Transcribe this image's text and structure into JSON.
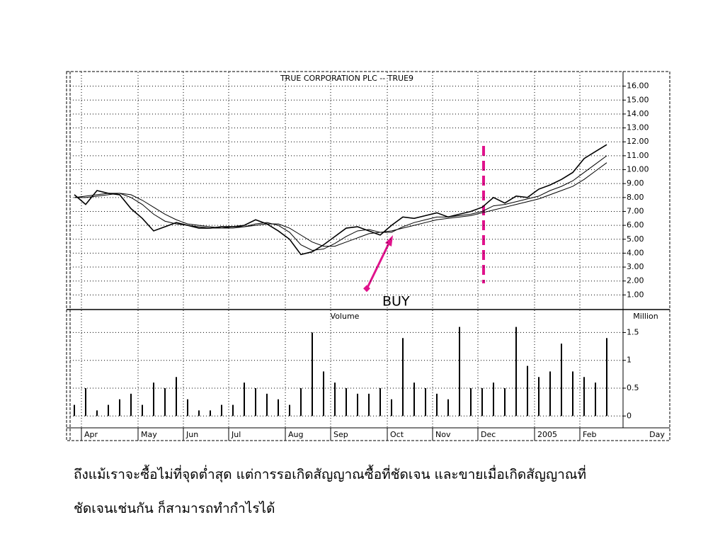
{
  "chart_data": [
    {
      "type": "line",
      "title": "TRUE CORPORATION PLC -- TRUE9",
      "series": [
        {
          "color": "#000000",
          "values": [
            8.2,
            7.5,
            8.5,
            8.3,
            8.2,
            7.2,
            6.5,
            5.6,
            5.9,
            6.2,
            6.0,
            5.8,
            5.8,
            5.9,
            5.9,
            6.0,
            6.4,
            6.1,
            5.6,
            5.0,
            3.9,
            4.1,
            4.6,
            5.2,
            5.8,
            5.9,
            5.6,
            5.3,
            6.0,
            6.6,
            6.5,
            6.7,
            6.9,
            6.6,
            6.8,
            7.0,
            7.3,
            8.0,
            7.6,
            8.1,
            8.0,
            8.6,
            8.9,
            9.3,
            9.8,
            10.8,
            11.3,
            11.8
          ]
        },
        {
          "color": "#000000",
          "values": [
            8.0,
            8.0,
            8.1,
            8.2,
            8.3,
            8.0,
            7.5,
            6.8,
            6.3,
            6.1,
            6.0,
            5.9,
            5.8,
            5.8,
            5.9,
            5.9,
            6.1,
            6.2,
            6.0,
            5.5,
            4.6,
            4.2,
            4.3,
            4.7,
            5.2,
            5.6,
            5.7,
            5.5,
            5.5,
            5.9,
            6.2,
            6.4,
            6.6,
            6.6,
            6.7,
            6.8,
            7.0,
            7.4,
            7.5,
            7.7,
            7.9,
            8.1,
            8.5,
            8.8,
            9.2,
            9.8,
            10.4,
            11.0
          ]
        },
        {
          "color": "#000000",
          "values": [
            8.0,
            8.1,
            8.2,
            8.3,
            8.3,
            8.2,
            7.8,
            7.3,
            6.8,
            6.4,
            6.1,
            6.0,
            5.9,
            5.8,
            5.8,
            5.9,
            6.0,
            6.1,
            6.1,
            5.8,
            5.3,
            4.8,
            4.5,
            4.5,
            4.8,
            5.1,
            5.4,
            5.5,
            5.6,
            5.8,
            6.0,
            6.2,
            6.4,
            6.5,
            6.6,
            6.7,
            6.9,
            7.1,
            7.3,
            7.5,
            7.7,
            7.9,
            8.2,
            8.5,
            8.8,
            9.3,
            9.9,
            10.5
          ]
        }
      ],
      "ylim": [
        0,
        17
      ],
      "yticks": [
        {
          "value": 1,
          "label": "1.00"
        },
        {
          "value": 2,
          "label": "2.00"
        },
        {
          "value": 3,
          "label": "3.00"
        },
        {
          "value": 4,
          "label": "4.00"
        },
        {
          "value": 5,
          "label": "5.00"
        },
        {
          "value": 6,
          "label": "6.00"
        },
        {
          "value": 7,
          "label": "7.00"
        },
        {
          "value": 8,
          "label": "8.00"
        },
        {
          "value": 9,
          "label": "9.00"
        },
        {
          "value": 10,
          "label": "10.00"
        },
        {
          "value": 11,
          "label": "11.00"
        },
        {
          "value": 12,
          "label": "12.00"
        },
        {
          "value": 13,
          "label": "13.00"
        },
        {
          "value": 14,
          "label": "14.00"
        },
        {
          "value": 15,
          "label": "15.00"
        },
        {
          "value": 16,
          "label": "16.00"
        }
      ],
      "grid": true,
      "annotation": "BUY"
    },
    {
      "type": "bar",
      "title": "Volume",
      "y_label": "Million",
      "x_label": "Day",
      "categories": [
        null,
        "Apr",
        null,
        null,
        null,
        null,
        "May",
        null,
        null,
        null,
        "Jun",
        null,
        null,
        null,
        "Jul",
        null,
        null,
        null,
        null,
        "Aug",
        null,
        null,
        null,
        "Sep",
        null,
        null,
        null,
        null,
        "Oct",
        null,
        null,
        null,
        "Nov",
        null,
        null,
        null,
        "Dec",
        null,
        null,
        null,
        null,
        "2005",
        null,
        null,
        null,
        "Feb",
        null,
        null
      ],
      "values": [
        0.2,
        0.5,
        0.1,
        0.2,
        0.3,
        0.4,
        0.2,
        0.6,
        0.5,
        0.7,
        0.3,
        0.1,
        0.1,
        0.2,
        0.2,
        0.6,
        0.5,
        0.4,
        0.3,
        0.2,
        0.5,
        1.5,
        0.8,
        0.6,
        0.5,
        0.4,
        0.4,
        0.5,
        0.3,
        1.4,
        0.6,
        0.5,
        0.4,
        0.3,
        1.6,
        0.5,
        0.5,
        0.6,
        0.5,
        1.6,
        0.9,
        0.7,
        0.8,
        1.3,
        0.8,
        0.7,
        0.6,
        1.4
      ],
      "color": "#000000",
      "ylim": [
        -0.2,
        1.9
      ],
      "yticks": [
        0,
        0.5,
        1,
        1.5
      ],
      "grid": true
    }
  ],
  "caption": [
    "ถึงแม้เราจะซื้อไม่ที่จุดต่ำสุด แต่การรอเกิดสัญญาณซื้อที่ชัดเจน และขายเมื่อเกิดสัญญาณที่",
    "ชัดเจนเช่นกัน ก็สามารถทำกำไรได้"
  ]
}
